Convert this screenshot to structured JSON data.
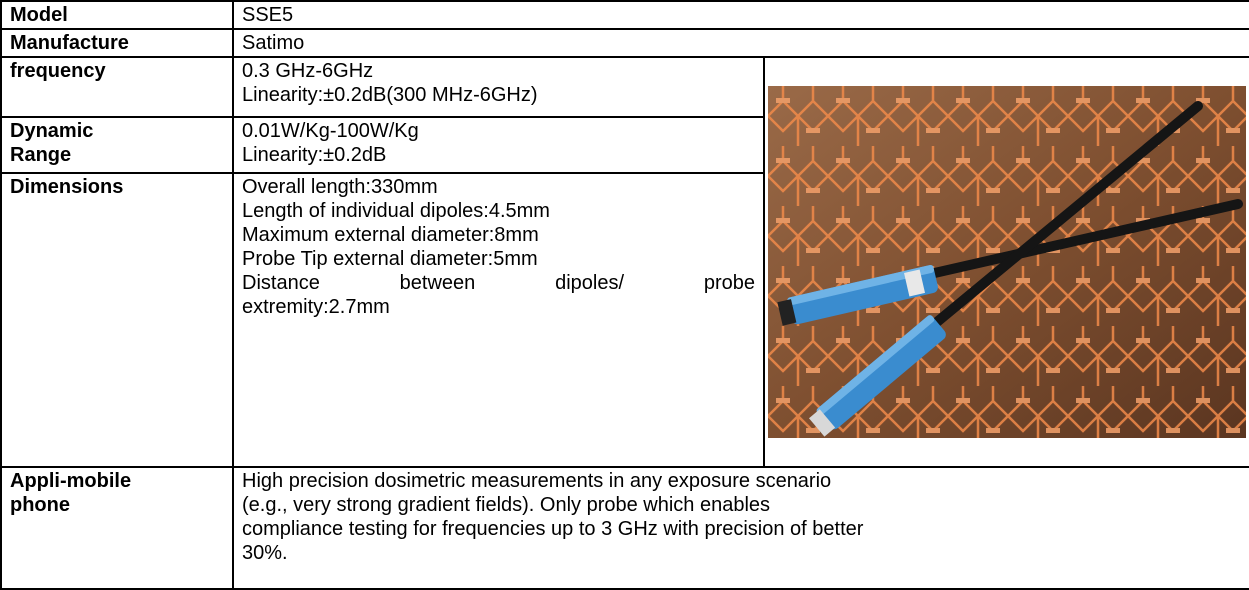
{
  "table": {
    "rows": [
      {
        "label": [
          "Model"
        ],
        "value": [
          "SSE5"
        ]
      },
      {
        "label": [
          "Manufacture"
        ],
        "value": [
          "Satimo"
        ]
      },
      {
        "label": [
          "frequency"
        ],
        "value": [
          "0.3 GHz-6GHz",
          "Linearity:±0.2dB(300 MHz-6GHz)"
        ]
      },
      {
        "label": [
          "Dynamic",
          "Range"
        ],
        "value": [
          "0.01W/Kg-100W/Kg",
          "Linearity:±0.2dB"
        ]
      },
      {
        "label": [
          "Dimensions"
        ],
        "value": [
          "Overall length:330mm",
          "Length of individual dipoles:4.5mm",
          "Maximum external diameter:8mm",
          "Probe Tip external diameter:5mm",
          "Distance between dipoles/ probe",
          "extremity:2.7mm"
        ]
      },
      {
        "label": [
          "Appli-mobile",
          "phone"
        ],
        "value": [
          "High precision dosimetric measurements in any exposure scenario",
          "(e.g., very strong gradient fields). Only probe which enables",
          "compliance testing for frequencies up to 3 GHz with precision of better",
          "30%."
        ]
      }
    ]
  }
}
